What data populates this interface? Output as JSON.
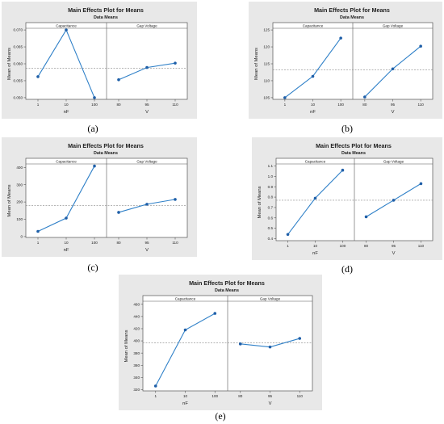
{
  "chart_data": [
    {
      "type": "line",
      "panel_label": "(a)",
      "title": "Main Effects Plot for Means",
      "subtitle": "Data Means",
      "ylabel": "Mean of Means",
      "ylim": [
        0.0495,
        0.0705
      ],
      "yticks": [
        0.05,
        0.055,
        0.06,
        0.065,
        0.07
      ],
      "ytick_labels": [
        "0.050",
        "0.055",
        "0.060",
        "0.065",
        "0.070"
      ],
      "grand_mean": 0.0587,
      "factors": [
        {
          "name": "Capacitance",
          "unit": "nF",
          "categories": [
            "1",
            "10",
            "100"
          ],
          "values": [
            0.0562,
            0.07,
            0.05
          ]
        },
        {
          "name": "Gap Voltage",
          "unit": "V",
          "categories": [
            "80",
            "95",
            "110"
          ],
          "values": [
            0.0553,
            0.0589,
            0.0602
          ]
        }
      ]
    },
    {
      "type": "line",
      "panel_label": "(b)",
      "title": "Main Effects Plot for Means",
      "subtitle": "Data Means",
      "ylabel": "Mean of Means",
      "ylim": [
        104.5,
        125.5
      ],
      "yticks": [
        105,
        110,
        115,
        120,
        125
      ],
      "ytick_labels": [
        "105",
        "110",
        "115",
        "120",
        "125"
      ],
      "grand_mean": 113.2,
      "factors": [
        {
          "name": "Capacitance",
          "unit": "nF",
          "categories": [
            "1",
            "10",
            "100"
          ],
          "values": [
            105.0,
            111.3,
            122.6
          ]
        },
        {
          "name": "Gap Voltage",
          "unit": "V",
          "categories": [
            "80",
            "95",
            "110"
          ],
          "values": [
            105.2,
            113.5,
            120.2
          ]
        }
      ]
    },
    {
      "type": "line",
      "panel_label": "(c)",
      "title": "Main Effects Plot for Means",
      "subtitle": "Data Means",
      "ylabel": "Mean of Means",
      "ylim": [
        -5,
        420
      ],
      "yticks": [
        0,
        100,
        200,
        300,
        400
      ],
      "ytick_labels": [
        "0",
        "100",
        "200",
        "300",
        "400"
      ],
      "grand_mean": 180,
      "factors": [
        {
          "name": "Capacitance",
          "unit": "nF",
          "categories": [
            "1",
            "10",
            "100"
          ],
          "values": [
            30,
            107,
            408
          ]
        },
        {
          "name": "Gap Voltage",
          "unit": "V",
          "categories": [
            "80",
            "95",
            "110"
          ],
          "values": [
            140,
            187,
            215
          ]
        }
      ]
    },
    {
      "type": "line",
      "panel_label": "(d)",
      "title": "Main Effects Plot for Means",
      "subtitle": "Data Means",
      "ylabel": "Mean of Means",
      "ylim": [
        0.38,
        1.12
      ],
      "yticks": [
        0.4,
        0.5,
        0.6,
        0.7,
        0.8,
        0.9,
        1.0,
        1.1
      ],
      "ytick_labels": [
        "0.4",
        "0.5",
        "0.6",
        "0.7",
        "0.8",
        "0.9",
        "1.0",
        "1.1"
      ],
      "grand_mean": 0.77,
      "factors": [
        {
          "name": "Capacitance",
          "unit": "nF",
          "categories": [
            "1",
            "10",
            "100"
          ],
          "values": [
            0.44,
            0.79,
            1.06
          ]
        },
        {
          "name": "Gap Voltage",
          "unit": "V",
          "categories": [
            "80",
            "95",
            "110"
          ],
          "values": [
            0.61,
            0.77,
            0.93
          ]
        }
      ]
    },
    {
      "type": "line",
      "panel_label": "(e)",
      "title": "Main Effects Plot for Means",
      "subtitle": "Data Means",
      "ylabel": "Mean of Means",
      "ylim": [
        318,
        465
      ],
      "yticks": [
        320,
        340,
        360,
        380,
        400,
        420,
        440,
        460
      ],
      "ytick_labels": [
        "320",
        "340",
        "360",
        "380",
        "400",
        "420",
        "440",
        "460"
      ],
      "grand_mean": 397,
      "factors": [
        {
          "name": "Capacitance",
          "unit": "nF",
          "categories": [
            "1",
            "10",
            "100"
          ],
          "values": [
            326,
            418,
            445
          ]
        },
        {
          "name": "Gap Voltage",
          "unit": "V",
          "categories": [
            "80",
            "95",
            "110"
          ],
          "values": [
            395,
            390,
            404
          ]
        }
      ]
    }
  ]
}
